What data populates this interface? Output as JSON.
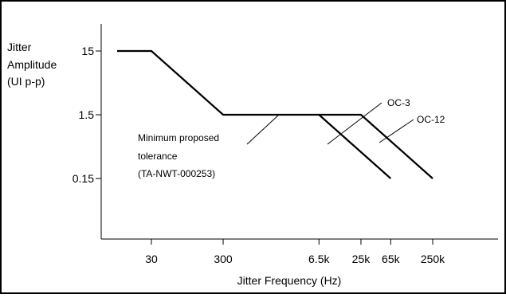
{
  "chart_data": {
    "type": "line",
    "ylabel_lines": [
      "Jitter",
      "Amplitude",
      "(UI p-p)"
    ],
    "xlabel": "Jitter Frequency (Hz)",
    "x_scale": "log",
    "y_scale": "log",
    "x_ticks": [
      {
        "value": 30,
        "label": "30"
      },
      {
        "value": 300,
        "label": "300"
      },
      {
        "value": 6500,
        "label": "6.5k"
      },
      {
        "value": 25000,
        "label": "25k"
      },
      {
        "value": 65000,
        "label": "65k"
      },
      {
        "value": 250000,
        "label": "250k"
      }
    ],
    "y_ticks": [
      {
        "value": 15,
        "label": "15"
      },
      {
        "value": 1.5,
        "label": "1.5"
      },
      {
        "value": 0.15,
        "label": "0.15"
      }
    ],
    "series": [
      {
        "name": "OC-3",
        "points": [
          [
            10,
            15
          ],
          [
            30,
            15
          ],
          [
            300,
            1.5
          ],
          [
            6500,
            1.5
          ],
          [
            65000,
            0.15
          ]
        ]
      },
      {
        "name": "OC-12",
        "points": [
          [
            6500,
            1.5
          ],
          [
            25000,
            1.5
          ],
          [
            250000,
            0.15
          ]
        ]
      }
    ],
    "annotation_lines": [
      "Minimum proposed",
      "tolerance",
      "(TA-NWT-000253)"
    ],
    "grid": false,
    "legend": "callout labels"
  }
}
